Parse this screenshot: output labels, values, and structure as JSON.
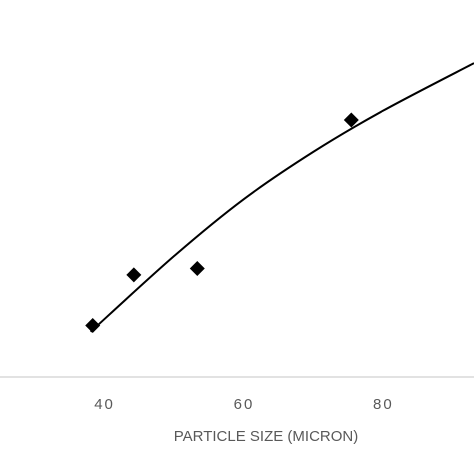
{
  "chart_data": {
    "type": "scatter",
    "xlabel": "PARTICLE SIZE (MICRON)",
    "ylabel": "",
    "title": "",
    "x_ticks": [
      "40",
      "60",
      "80"
    ],
    "xlim": [
      25,
      93
    ],
    "ylim": [
      0,
      100
    ],
    "grid": false,
    "legend": "none",
    "series": [
      {
        "values": [
          {
            "x": 38.3,
            "y": 16
          },
          {
            "x": 44.2,
            "y": 32
          },
          {
            "x": 53.3,
            "y": 34
          },
          {
            "x": 75.4,
            "y": 81
          }
        ],
        "marker": "diamond",
        "color": "#000000"
      }
    ],
    "trendline": {
      "x_range": [
        38,
        93
      ],
      "points": [
        {
          "x": 38,
          "y": 14
        },
        {
          "x": 50,
          "y": 38
        },
        {
          "x": 60,
          "y": 56
        },
        {
          "x": 70,
          "y": 71
        },
        {
          "x": 80,
          "y": 84
        },
        {
          "x": 93,
          "y": 99
        }
      ],
      "color": "#000000"
    },
    "colors": {
      "axis": "#d9d9d9",
      "text": "#595959",
      "marker": "#000000"
    }
  }
}
